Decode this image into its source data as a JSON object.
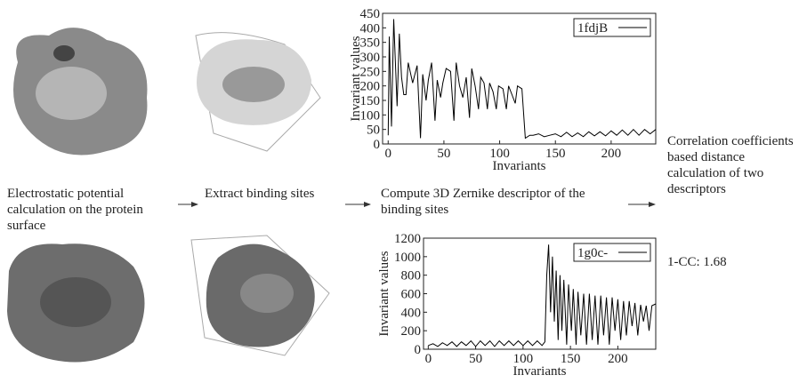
{
  "steps": [
    {
      "text": "Electrostatic potential calculation on the protein surface"
    },
    {
      "text": "Extract binding sites"
    },
    {
      "text": "Compute 3D Zernike descriptor of the binding sites"
    },
    {
      "text": "Correlation coefficients based distance calculation of two descriptors"
    }
  ],
  "result": "1-CC: 1.68",
  "chart_data": [
    {
      "type": "line",
      "xlabel": "Invariants",
      "ylabel": "Invariant values",
      "xlim": [
        -5,
        240
      ],
      "ylim": [
        0,
        450
      ],
      "xticks": [
        0,
        50,
        100,
        150,
        200
      ],
      "yticks": [
        0,
        50,
        100,
        150,
        200,
        250,
        300,
        350,
        400,
        450
      ],
      "legend": "upper right",
      "x": [
        0,
        1,
        3,
        5,
        8,
        10,
        12,
        14,
        16,
        18,
        22,
        26,
        29,
        31,
        34,
        36,
        39,
        42,
        44,
        47,
        49,
        52,
        56,
        59,
        61,
        64,
        67,
        70,
        73,
        75,
        78,
        81,
        83,
        86,
        89,
        91,
        94,
        97,
        99,
        103,
        106,
        108,
        111,
        114,
        116,
        120,
        123,
        127,
        130,
        135,
        140,
        145,
        150,
        155,
        160,
        165,
        170,
        175,
        180,
        185,
        190,
        195,
        200,
        205,
        210,
        215,
        220,
        225,
        230,
        235,
        240
      ],
      "series": [
        {
          "name": "1fdjB",
          "color": "#000000",
          "values": [
            30,
            370,
            60,
            430,
            130,
            380,
            230,
            170,
            170,
            280,
            210,
            270,
            20,
            240,
            150,
            220,
            280,
            80,
            220,
            160,
            210,
            260,
            250,
            80,
            280,
            200,
            160,
            230,
            90,
            260,
            200,
            120,
            230,
            210,
            120,
            210,
            180,
            120,
            200,
            190,
            120,
            200,
            170,
            140,
            200,
            190,
            20,
            30,
            30,
            35,
            25,
            30,
            35,
            25,
            40,
            25,
            38,
            25,
            42,
            28,
            42,
            28,
            45,
            30,
            48,
            30,
            50,
            30,
            50,
            35,
            50
          ]
        }
      ]
    },
    {
      "type": "line",
      "xlabel": "Invariants",
      "ylabel": "Invariant values",
      "xlim": [
        -5,
        240
      ],
      "ylim": [
        0,
        1200
      ],
      "xticks": [
        0,
        50,
        100,
        150,
        200
      ],
      "yticks": [
        0,
        200,
        400,
        600,
        800,
        1000,
        1200
      ],
      "legend": "upper right",
      "x": [
        0,
        5,
        10,
        15,
        20,
        25,
        30,
        35,
        40,
        45,
        50,
        55,
        60,
        65,
        70,
        75,
        80,
        85,
        90,
        95,
        100,
        105,
        110,
        115,
        120,
        123,
        125,
        127,
        129,
        131,
        133,
        135,
        137,
        139,
        141,
        143,
        146,
        148,
        151,
        153,
        156,
        158,
        161,
        164,
        167,
        170,
        173,
        176,
        179,
        182,
        185,
        188,
        191,
        194,
        197,
        200,
        203,
        206,
        209,
        212,
        215,
        218,
        221,
        224,
        227,
        230,
        233,
        236,
        240
      ],
      "series": [
        {
          "name": "1g0c-",
          "color": "#000000",
          "values": [
            40,
            60,
            30,
            70,
            40,
            80,
            30,
            80,
            40,
            90,
            30,
            90,
            40,
            90,
            30,
            90,
            40,
            90,
            40,
            90,
            40,
            90,
            40,
            90,
            40,
            80,
            800,
            1130,
            400,
            1000,
            300,
            850,
            100,
            800,
            200,
            750,
            50,
            700,
            200,
            650,
            50,
            620,
            150,
            600,
            50,
            600,
            100,
            580,
            50,
            580,
            150,
            560,
            50,
            560,
            200,
            540,
            100,
            520,
            150,
            520,
            250,
            500,
            150,
            480,
            300,
            470,
            200,
            470,
            490
          ]
        }
      ]
    }
  ]
}
